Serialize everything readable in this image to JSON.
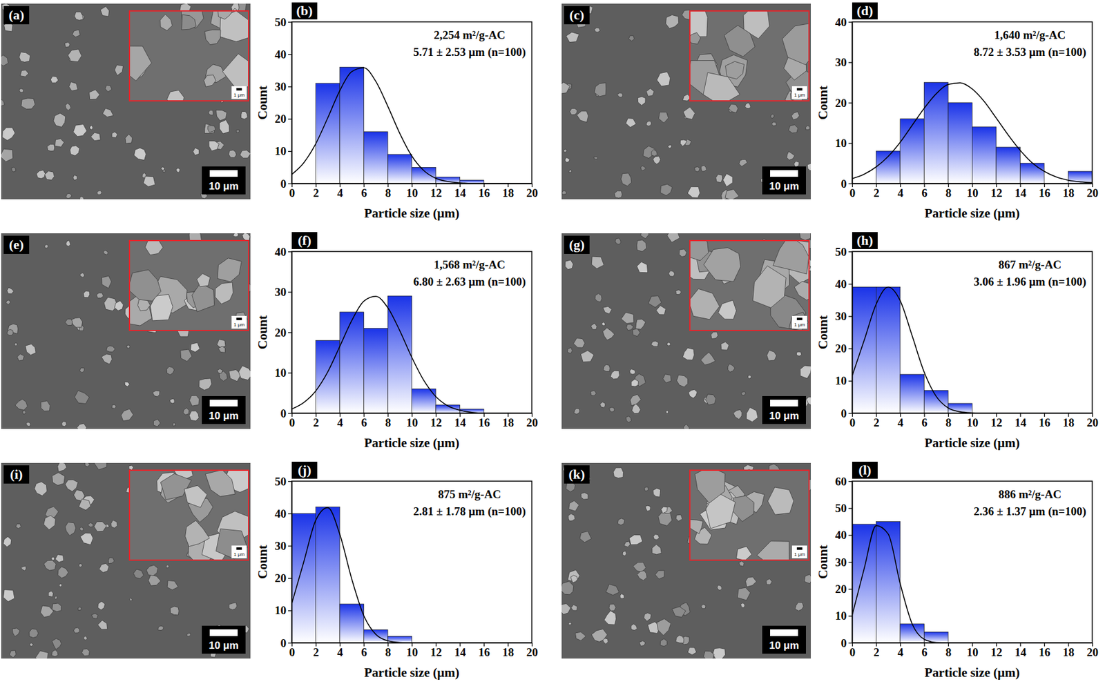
{
  "images": [
    {
      "panel": "(a)",
      "scale_bar": "10 μm",
      "inset_scale_bar": "1 μm"
    },
    {
      "panel": "(c)",
      "scale_bar": "10 μm",
      "inset_scale_bar": "1 μm"
    },
    {
      "panel": "(e)",
      "scale_bar": "10 μm",
      "inset_scale_bar": "1 μm"
    },
    {
      "panel": "(g)",
      "scale_bar": "10 μm",
      "inset_scale_bar": "1 μm"
    },
    {
      "panel": "(i)",
      "scale_bar": "10 μm",
      "inset_scale_bar": "1 μm"
    },
    {
      "panel": "(k)",
      "scale_bar": "10 μm",
      "inset_scale_bar": "1 μm"
    }
  ],
  "chart_data": [
    {
      "type": "histogram",
      "panel": "(b)",
      "annotations": [
        "2,254 m²/g-AC",
        "5.71 ± 2.53 μm (n=100)"
      ],
      "xlabel": "Particle size (μm)",
      "ylabel": "Count",
      "color": "#1a33e8",
      "grid": false,
      "bins": [
        0,
        2,
        4,
        6,
        8,
        10,
        12,
        14,
        16,
        18,
        20
      ],
      "values": [
        0,
        31,
        36,
        16,
        9,
        5,
        2,
        1,
        0,
        0
      ],
      "xlim": [
        0,
        20
      ],
      "xticks": [
        0,
        2,
        4,
        6,
        8,
        10,
        12,
        14,
        16,
        18,
        20
      ],
      "ylim": [
        0,
        50
      ],
      "yticks": [
        0,
        10,
        20,
        30,
        40,
        50
      ],
      "fit": {
        "type": "line",
        "color": "#000000",
        "x": [
          0,
          1,
          2,
          3,
          4,
          5,
          6,
          7,
          8,
          9,
          10,
          11,
          12,
          13,
          14,
          15,
          16,
          17,
          18,
          19,
          20
        ],
        "values": [
          2.8,
          6.4,
          12.3,
          20.3,
          28.7,
          34.6,
          35.8,
          31.6,
          23.9,
          15.5,
          8.5,
          4.0,
          1.6,
          0.6,
          0.2,
          0,
          0,
          0,
          0,
          0,
          0
        ]
      }
    },
    {
      "type": "histogram",
      "panel": "(d)",
      "annotations": [
        "1,640 m²/g-AC",
        "8.72 ± 3.53 μm (n=100)"
      ],
      "xlabel": "Particle size (μm)",
      "ylabel": "Count",
      "color": "#1a33e8",
      "grid": false,
      "bins": [
        0,
        2,
        4,
        6,
        8,
        10,
        12,
        14,
        16,
        18,
        20
      ],
      "values": [
        0,
        8,
        16,
        25,
        20,
        14,
        9,
        5,
        0,
        3
      ],
      "xlim": [
        0,
        20
      ],
      "xticks": [
        0,
        2,
        4,
        6,
        8,
        10,
        12,
        14,
        16,
        18,
        20
      ],
      "ylim": [
        0,
        40
      ],
      "yticks": [
        0,
        10,
        20,
        30,
        40
      ],
      "fit": {
        "type": "line",
        "color": "#000000",
        "x": [
          0,
          1,
          2,
          3,
          4,
          5,
          6,
          7,
          8,
          9,
          10,
          11,
          12,
          13,
          14,
          15,
          16,
          17,
          18,
          19,
          20
        ],
        "values": [
          1.2,
          2.3,
          4.1,
          6.7,
          10.2,
          14.4,
          18.6,
          22.2,
          24.5,
          24.9,
          23.4,
          20.3,
          16.2,
          12.0,
          8.2,
          5.1,
          3.0,
          1.6,
          0.8,
          0.4,
          0.2
        ]
      }
    },
    {
      "type": "histogram",
      "panel": "(f)",
      "annotations": [
        "1,568 m²/g-AC",
        "6.80 ± 2.63 μm (n=100)"
      ],
      "xlabel": "Particle size (μm)",
      "ylabel": "Count",
      "color": "#1a33e8",
      "grid": false,
      "bins": [
        0,
        2,
        4,
        6,
        8,
        10,
        12,
        14,
        16,
        18,
        20
      ],
      "values": [
        0,
        18,
        25,
        21,
        29,
        6,
        2,
        1,
        0,
        0
      ],
      "xlim": [
        0,
        20
      ],
      "xticks": [
        0,
        2,
        4,
        6,
        8,
        10,
        12,
        14,
        16,
        18,
        20
      ],
      "ylim": [
        0,
        40
      ],
      "yticks": [
        0,
        10,
        20,
        30,
        40
      ],
      "fit": {
        "type": "line",
        "color": "#000000",
        "x": [
          0,
          1,
          2,
          3,
          4,
          5,
          6,
          7,
          8,
          9,
          10,
          11,
          12,
          13,
          14,
          15,
          16,
          17,
          18,
          19,
          20
        ],
        "values": [
          1.0,
          2.6,
          5.5,
          10.2,
          16.5,
          22.9,
          27.7,
          28.9,
          26.1,
          20.4,
          13.8,
          8.1,
          4.1,
          1.8,
          0.7,
          0.2,
          0,
          0,
          0,
          0,
          0
        ]
      }
    },
    {
      "type": "histogram",
      "panel": "(h)",
      "annotations": [
        "867 m²/g-AC",
        "3.06 ± 1.96 μm (n=100)"
      ],
      "xlabel": "Particle size (μm)",
      "ylabel": "Count",
      "color": "#1a33e8",
      "grid": false,
      "bins": [
        0,
        2,
        4,
        6,
        8,
        10,
        12,
        14,
        16,
        18,
        20
      ],
      "values": [
        39,
        39,
        12,
        7,
        3,
        0,
        0,
        0,
        0,
        0
      ],
      "xlim": [
        0,
        20
      ],
      "xticks": [
        0,
        2,
        4,
        6,
        8,
        10,
        12,
        14,
        16,
        18,
        20
      ],
      "ylim": [
        0,
        50
      ],
      "yticks": [
        0,
        10,
        20,
        30,
        40,
        50
      ],
      "fit": {
        "type": "line",
        "color": "#000000",
        "x": [
          0,
          1,
          2,
          3,
          4,
          5,
          6,
          7,
          8,
          9,
          10,
          11,
          12,
          13,
          14,
          15,
          16,
          17,
          18,
          19,
          20
        ],
        "values": [
          11.5,
          22.5,
          33.7,
          39.0,
          34.8,
          23.9,
          12.7,
          5.2,
          1.6,
          0.4,
          0.1,
          0,
          0,
          0,
          0,
          0,
          0,
          0,
          0,
          0,
          0
        ]
      }
    },
    {
      "type": "histogram",
      "panel": "(j)",
      "annotations": [
        "875 m²/g-AC",
        "2.81 ± 1.78 μm (n=100)"
      ],
      "xlabel": "Particle size (μm)",
      "ylabel": "Count",
      "color": "#1a33e8",
      "grid": false,
      "bins": [
        0,
        2,
        4,
        6,
        8,
        10,
        12,
        14,
        16,
        18,
        20
      ],
      "values": [
        40,
        42,
        12,
        4,
        2,
        0,
        0,
        0,
        0,
        0
      ],
      "xlim": [
        0,
        20
      ],
      "xticks": [
        0,
        2,
        4,
        6,
        8,
        10,
        12,
        14,
        16,
        18,
        20
      ],
      "ylim": [
        0,
        50
      ],
      "yticks": [
        0,
        10,
        20,
        30,
        40,
        50
      ],
      "fit": {
        "type": "line",
        "color": "#000000",
        "x": [
          0,
          1,
          2,
          3,
          4,
          5,
          6,
          7,
          8,
          9,
          10,
          11,
          12,
          13,
          14,
          15,
          16,
          17,
          18,
          19,
          20
        ],
        "values": [
          12.1,
          25.0,
          37.9,
          41.8,
          33.6,
          19.7,
          8.4,
          2.6,
          0.6,
          0.1,
          0,
          0,
          0,
          0,
          0,
          0,
          0,
          0,
          0,
          0,
          0
        ]
      }
    },
    {
      "type": "histogram",
      "panel": "(l)",
      "annotations": [
        "886 m²/g-AC",
        "2.36 ± 1.37 μm (n=100)"
      ],
      "xlabel": "Particle size (μm)",
      "ylabel": "Count",
      "color": "#1a33e8",
      "grid": false,
      "bins": [
        0,
        2,
        4,
        6,
        8,
        10,
        12,
        14,
        16,
        18,
        20
      ],
      "values": [
        44,
        45,
        7,
        4,
        0,
        0,
        0,
        0,
        0,
        0
      ],
      "xlim": [
        0,
        20
      ],
      "xticks": [
        0,
        2,
        4,
        6,
        8,
        10,
        12,
        14,
        16,
        18,
        20
      ],
      "ylim": [
        0,
        60
      ],
      "yticks": [
        0,
        10,
        20,
        30,
        40,
        50,
        60
      ],
      "fit": {
        "type": "line",
        "color": "#000000",
        "x": [
          0,
          1,
          2,
          3,
          4,
          5,
          6,
          7,
          8,
          9,
          10,
          11,
          12,
          13,
          14,
          15,
          16,
          17,
          18,
          19,
          20
        ],
        "values": [
          10.2,
          27.5,
          43.5,
          40.4,
          22.0,
          7.0,
          1.3,
          0.1,
          0,
          0,
          0,
          0,
          0,
          0,
          0,
          0,
          0,
          0,
          0,
          0,
          0
        ]
      }
    }
  ]
}
